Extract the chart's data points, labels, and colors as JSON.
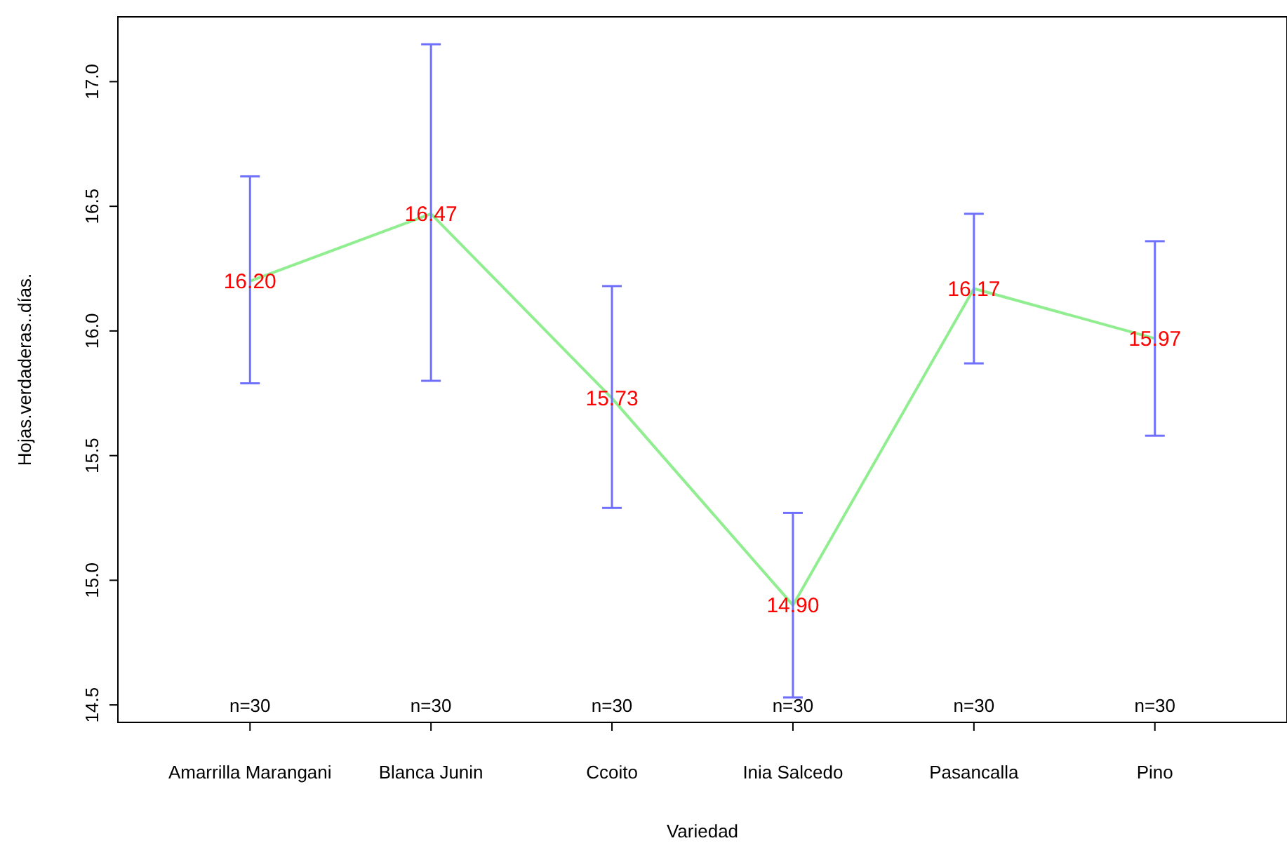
{
  "chart_data": {
    "type": "line",
    "xlabel": "Variedad",
    "ylabel": "Hojas.verdaderas..días.",
    "categories": [
      "Amarrilla Marangani",
      "Blanca Junin",
      "Ccoito",
      "Inia Salcedo",
      "Pasancalla",
      "Pino"
    ],
    "series": [
      {
        "color": "#90ee90",
        "values": [
          16.2,
          16.47,
          15.73,
          14.9,
          16.17,
          15.97
        ],
        "errors": [
          [
            15.79,
            16.62
          ],
          [
            15.8,
            17.15
          ],
          [
            15.29,
            16.18
          ],
          [
            14.53,
            15.27
          ],
          [
            15.87,
            16.47
          ],
          [
            15.58,
            16.36
          ]
        ],
        "value_labels": [
          "16.20",
          "16.47",
          "15.73",
          "14.90",
          "16.17",
          "15.97"
        ]
      }
    ],
    "annotations": [
      "n=30",
      "n=30",
      "n=30",
      "n=30",
      "n=30",
      "n=30"
    ],
    "ylim": [
      14.43,
      17.26
    ],
    "yticks": [
      14.5,
      {
        "value": 15,
        "label": "15.0"
      },
      15.5,
      {
        "value": 16,
        "label": "16.0"
      },
      16.5,
      {
        "value": 17,
        "label": "17.0"
      }
    ],
    "grid": false,
    "marker": "none",
    "line_style": "solid"
  }
}
